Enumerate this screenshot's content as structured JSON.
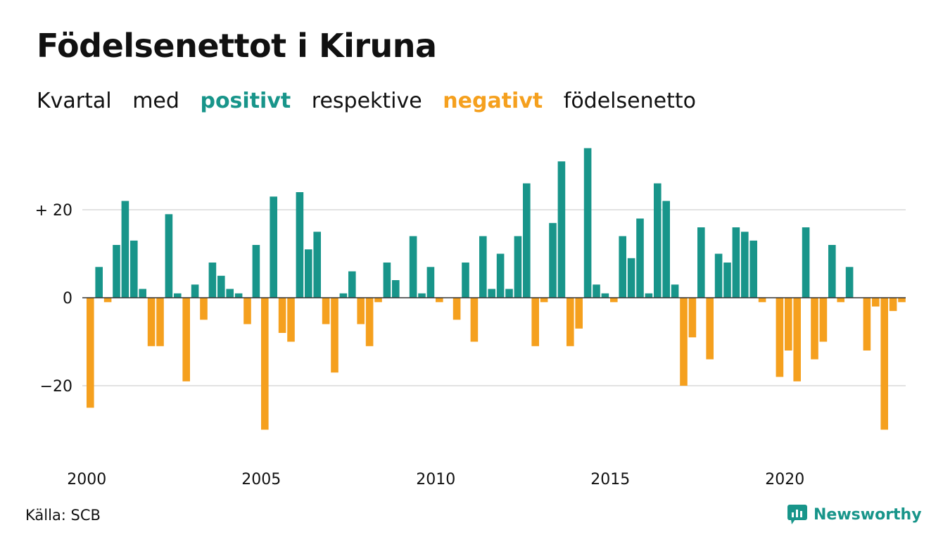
{
  "title": "Födelsenettot i Kiruna",
  "subtitle": {
    "w1": "Kvartal",
    "w2": "med",
    "positive": "positivt",
    "w3": "respektive",
    "negative": "negativt",
    "w4": "födelsenetto"
  },
  "source": "Källa: SCB",
  "logo_text": "Newsworthy",
  "colors": {
    "positive": "#18958a",
    "negative": "#f5a01e",
    "grid": "#e2e2e2"
  },
  "chart_data": {
    "type": "bar",
    "title": "Födelsenettot i Kiruna",
    "xlabel": "",
    "ylabel": "",
    "x_start": "2000-Q1",
    "x_ticks": [
      {
        "label": "2000",
        "index": 0
      },
      {
        "label": "2005",
        "index": 20
      },
      {
        "label": "2010",
        "index": 40
      },
      {
        "label": "2015",
        "index": 60
      },
      {
        "label": "2020",
        "index": 80
      }
    ],
    "y_ticks": [
      {
        "label": "+ 20",
        "value": 20
      },
      {
        "label": "0",
        "value": 0
      },
      {
        "label": "−20",
        "value": -20
      }
    ],
    "ylim": [
      -36,
      36
    ],
    "grid": true,
    "values": [
      -25,
      7,
      -1,
      12,
      22,
      13,
      2,
      -11,
      -11,
      19,
      1,
      -19,
      3,
      -5,
      8,
      5,
      2,
      1,
      -6,
      12,
      -30,
      23,
      -8,
      -10,
      24,
      11,
      15,
      -6,
      -17,
      1,
      6,
      -6,
      -11,
      -1,
      8,
      4,
      0,
      14,
      1,
      7,
      -1,
      0,
      -5,
      8,
      -10,
      14,
      2,
      10,
      2,
      14,
      26,
      -11,
      -1,
      17,
      31,
      -11,
      -7,
      34,
      3,
      1,
      -1,
      14,
      9,
      18,
      1,
      26,
      22,
      3,
      -20,
      -9,
      16,
      -14,
      10,
      8,
      16,
      15,
      13,
      -1,
      0,
      -18,
      -12,
      -19,
      16,
      -14,
      -10,
      12,
      -1,
      7,
      0,
      -12,
      -2,
      -30,
      -3,
      -1
    ]
  }
}
